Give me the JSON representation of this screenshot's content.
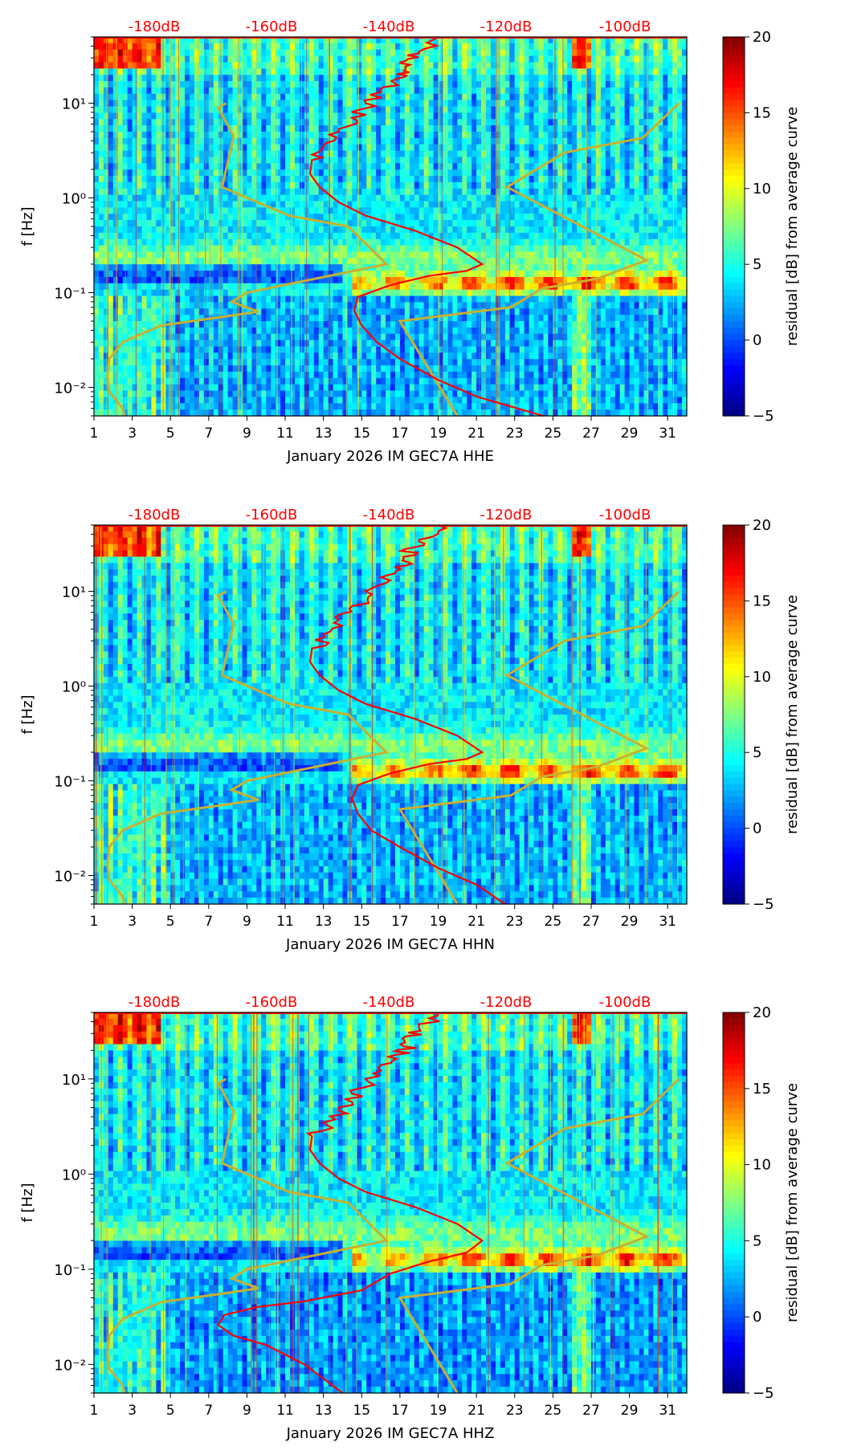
{
  "figure": {
    "colormap": "jet",
    "top_axis_color": "#ff0000",
    "median_color": "#ff0000",
    "model_color": "#c8b030"
  },
  "chart_data": [
    {
      "type": "heatmap",
      "channel": "HHE",
      "xlabel": "January 2026 IM GEC7A  HHE",
      "ylabel": "f [Hz]",
      "colorbar_label": "residual [dB] from average curve",
      "xticks": [
        "1",
        "3",
        "5",
        "7",
        "9",
        "11",
        "13",
        "15",
        "17",
        "19",
        "21",
        "23",
        "25",
        "27",
        "29",
        "31"
      ],
      "xlim": [
        1,
        32
      ],
      "ylim": [
        0.005,
        50
      ],
      "yscale": "log",
      "yticks": [
        "10⁻²",
        "10⁻¹",
        "10⁰",
        "10¹"
      ],
      "clim": [
        -5,
        20
      ],
      "cticks": [
        "−5",
        "0",
        "5",
        "10",
        "15",
        "20"
      ],
      "top_ticks": [
        "-180dB",
        "-160dB",
        "-140dB",
        "-120dB",
        "-100dB"
      ],
      "median_curve": {
        "x": [
          24.5,
          21,
          19,
          17,
          15.8,
          15,
          14.6,
          14.8,
          16.5,
          18.5,
          20.5,
          21.3,
          20,
          17.8,
          15.2,
          13.8,
          12.8,
          12.3,
          12.4,
          13.0,
          13.8,
          14.5,
          15.2,
          16.0,
          16.8,
          17.2,
          17.3,
          18.0,
          19.0
        ],
        "y": [
          0.005,
          0.008,
          0.012,
          0.02,
          0.03,
          0.045,
          0.065,
          0.09,
          0.12,
          0.15,
          0.17,
          0.2,
          0.3,
          0.45,
          0.65,
          0.9,
          1.3,
          1.8,
          2.5,
          3.5,
          5,
          7,
          10,
          14,
          18,
          22,
          28,
          35,
          50
        ]
      },
      "model_curves": [
        {
          "name": "low noise model",
          "x": [
            2.6,
            2.5,
            1.8,
            1.7,
            1.8,
            2.5,
            4.5,
            7.6,
            9.6,
            8.2,
            9.0,
            16.3,
            14.3,
            11.2,
            7.7,
            8.3,
            7.5,
            7.9
          ],
          "y": [
            0.005,
            0.006,
            0.009,
            0.013,
            0.02,
            0.03,
            0.045,
            0.055,
            0.063,
            0.08,
            0.1,
            0.2,
            0.5,
            0.65,
            1.3,
            4.5,
            9,
            10
          ]
        },
        {
          "name": "high noise model",
          "x": [
            20,
            17,
            22.8,
            24.4,
            27.3,
            29.9,
            22.6,
            25.6,
            29.7,
            31.6
          ],
          "y": [
            0.005,
            0.05,
            0.07,
            0.11,
            0.14,
            0.22,
            1.3,
            3.0,
            4.3,
            10
          ]
        }
      ]
    },
    {
      "type": "heatmap",
      "channel": "HHN",
      "xlabel": "January 2026 IM GEC7A  HHN",
      "ylabel": "f [Hz]",
      "colorbar_label": "residual [dB] from average curve",
      "xticks": [
        "1",
        "3",
        "5",
        "7",
        "9",
        "11",
        "13",
        "15",
        "17",
        "19",
        "21",
        "23",
        "25",
        "27",
        "29",
        "31"
      ],
      "xlim": [
        1,
        32
      ],
      "ylim": [
        0.005,
        50
      ],
      "yscale": "log",
      "yticks": [
        "10⁻²",
        "10⁻¹",
        "10⁰",
        "10¹"
      ],
      "clim": [
        -5,
        20
      ],
      "cticks": [
        "−5",
        "0",
        "5",
        "10",
        "15",
        "20"
      ],
      "top_ticks": [
        "-180dB",
        "-160dB",
        "-140dB",
        "-120dB",
        "-100dB"
      ],
      "median_curve": {
        "x": [
          22.5,
          21,
          19,
          17,
          15.5,
          14.8,
          14.5,
          14.8,
          16.5,
          18.5,
          20.5,
          21.3,
          20,
          17.8,
          15.2,
          13.8,
          12.8,
          12.3,
          12.4,
          13.0,
          13.8,
          14.5,
          15.2,
          16.0,
          16.8,
          17.2,
          17.3,
          18.0,
          19.0
        ],
        "y": [
          0.005,
          0.008,
          0.012,
          0.02,
          0.03,
          0.045,
          0.065,
          0.09,
          0.12,
          0.15,
          0.17,
          0.2,
          0.3,
          0.45,
          0.65,
          0.9,
          1.3,
          1.8,
          2.5,
          3.5,
          5,
          7,
          10,
          14,
          18,
          22,
          28,
          35,
          50
        ]
      },
      "model_curves": [
        {
          "name": "low noise model",
          "x": [
            2.6,
            2.5,
            1.8,
            1.7,
            1.8,
            2.5,
            4.5,
            7.6,
            9.6,
            8.2,
            9.0,
            16.3,
            14.3,
            11.2,
            7.7,
            8.3,
            7.5,
            7.9
          ],
          "y": [
            0.005,
            0.006,
            0.009,
            0.013,
            0.02,
            0.03,
            0.045,
            0.055,
            0.063,
            0.08,
            0.1,
            0.2,
            0.5,
            0.65,
            1.3,
            4.5,
            9,
            10
          ]
        },
        {
          "name": "high noise model",
          "x": [
            20,
            17,
            22.8,
            24.4,
            27.3,
            29.9,
            22.6,
            25.6,
            29.7,
            31.6
          ],
          "y": [
            0.005,
            0.05,
            0.07,
            0.11,
            0.14,
            0.22,
            1.3,
            3.0,
            4.3,
            10
          ]
        }
      ]
    },
    {
      "type": "heatmap",
      "channel": "HHZ",
      "xlabel": "January 2026 IM GEC7A  HHZ",
      "ylabel": "f [Hz]",
      "colorbar_label": "residual [dB] from average curve",
      "xticks": [
        "1",
        "3",
        "5",
        "7",
        "9",
        "11",
        "13",
        "15",
        "17",
        "19",
        "21",
        "23",
        "25",
        "27",
        "29",
        "31"
      ],
      "xlim": [
        1,
        32
      ],
      "ylim": [
        0.005,
        50
      ],
      "yscale": "log",
      "yticks": [
        "10⁻²",
        "10⁻¹",
        "10⁰",
        "10¹"
      ],
      "clim": [
        -5,
        20
      ],
      "cticks": [
        "−5",
        "0",
        "5",
        "10",
        "15",
        "20"
      ],
      "top_ticks": [
        "-180dB",
        "-160dB",
        "-140dB",
        "-120dB",
        "-100dB"
      ],
      "median_curve": {
        "x": [
          14,
          12,
          10,
          8.3,
          7.5,
          7.8,
          9.5,
          12,
          15,
          16.5,
          18.5,
          20.5,
          21.3,
          20,
          17.8,
          15.2,
          13.8,
          12.8,
          12.3,
          12.4,
          13.0,
          13.8,
          14.5,
          15.2,
          16.0,
          16.8,
          17.2,
          17.3,
          18.0,
          19.0
        ],
        "y": [
          0.005,
          0.01,
          0.016,
          0.02,
          0.026,
          0.033,
          0.04,
          0.046,
          0.06,
          0.09,
          0.12,
          0.15,
          0.2,
          0.3,
          0.45,
          0.65,
          0.9,
          1.3,
          1.8,
          2.5,
          3.5,
          5,
          7,
          10,
          14,
          18,
          22,
          28,
          35,
          50
        ]
      },
      "model_curves": [
        {
          "name": "low noise model",
          "x": [
            2.6,
            2.5,
            1.8,
            1.7,
            1.8,
            2.5,
            4.5,
            7.6,
            9.6,
            8.2,
            9.0,
            16.3,
            14.3,
            11.2,
            7.7,
            8.3,
            7.5,
            7.9
          ],
          "y": [
            0.005,
            0.006,
            0.009,
            0.013,
            0.02,
            0.03,
            0.045,
            0.055,
            0.063,
            0.08,
            0.1,
            0.2,
            0.5,
            0.65,
            1.3,
            4.5,
            9,
            10
          ]
        },
        {
          "name": "high noise model",
          "x": [
            20,
            17,
            22.8,
            24.4,
            27.3,
            29.9,
            22.6,
            25.6,
            29.7,
            31.6
          ],
          "y": [
            0.005,
            0.05,
            0.07,
            0.11,
            0.14,
            0.22,
            1.3,
            3.0,
            4.3,
            10
          ]
        }
      ]
    }
  ]
}
